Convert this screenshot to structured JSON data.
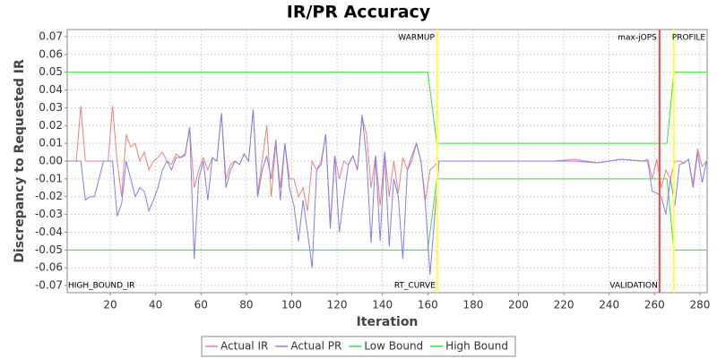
{
  "chart_data": {
    "type": "line",
    "title": "IR/PR Accuracy",
    "x_label": "Iteration",
    "y_label": "Discrepancy to Requested IR",
    "x": [
      1,
      3,
      5,
      7,
      9,
      11,
      13,
      15,
      17,
      19,
      21,
      23,
      25,
      27,
      29,
      31,
      33,
      35,
      37,
      39,
      41,
      43,
      45,
      47,
      49,
      51,
      53,
      55,
      57,
      59,
      61,
      63,
      65,
      67,
      69,
      71,
      73,
      75,
      77,
      79,
      81,
      83,
      85,
      87,
      89,
      91,
      93,
      95,
      97,
      99,
      101,
      103,
      105,
      107,
      109,
      111,
      113,
      115,
      117,
      119,
      121,
      123,
      125,
      127,
      129,
      131,
      133,
      135,
      137,
      139,
      141,
      143,
      145,
      147,
      149,
      151,
      153,
      155,
      157,
      159,
      161,
      165,
      175,
      185,
      195,
      205,
      215,
      225,
      235,
      245,
      255,
      257,
      259,
      261,
      263,
      265,
      267,
      269,
      271,
      273,
      275,
      277,
      279,
      281,
      283
    ],
    "series": [
      {
        "name": "Actual IR",
        "color": "#f28080",
        "values": [
          0,
          0,
          0,
          0.031,
          0,
          0,
          0,
          0,
          0,
          0,
          0.031,
          0,
          -0.02,
          0.015,
          0.008,
          0.01,
          0,
          0.005,
          -0.005,
          0,
          0.002,
          0.005,
          0,
          -0.002,
          0.004,
          0.002,
          0.003,
          0.019,
          -0.015,
          -0.005,
          0.002,
          -0.005,
          0.002,
          0,
          0.027,
          -0.01,
          -0.002,
          0,
          -0.002,
          0.004,
          0,
          0.029,
          -0.018,
          0,
          0.02,
          -0.02,
          0.01,
          -0.015,
          0.01,
          -0.01,
          -0.01,
          -0.02,
          -0.015,
          -0.028,
          0,
          -0.005,
          0,
          0.015,
          -0.035,
          0.003,
          -0.01,
          0,
          -0.002,
          0.003,
          -0.005,
          0.025,
          0.015,
          -0.015,
          0.003,
          -0.025,
          0.005,
          -0.02,
          0,
          -0.018,
          0.002,
          -0.005,
          0,
          0.01,
          0,
          -0.022,
          -0.005,
          0,
          0,
          0,
          0,
          0,
          0,
          0.001,
          -0.001,
          0.001,
          0,
          0.001,
          -0.01,
          0.001,
          -0.015,
          -0.005,
          -0.01,
          0,
          0,
          -0.001,
          0.001,
          -0.013,
          0.007,
          -0.003,
          0
        ]
      },
      {
        "name": "Actual PR",
        "color": "#7f7ff0",
        "values": [
          0,
          0,
          0,
          0,
          -0.022,
          -0.02,
          -0.02,
          -0.01,
          0,
          0,
          0,
          -0.031,
          -0.024,
          0,
          -0.01,
          -0.02,
          -0.015,
          -0.017,
          -0.028,
          -0.022,
          -0.015,
          -0.005,
          0,
          -0.005,
          0.002,
          0.002,
          0.004,
          0.019,
          -0.055,
          -0.01,
          0,
          -0.022,
          0.002,
          0,
          0.027,
          -0.015,
          -0.005,
          0,
          -0.002,
          0.004,
          0,
          0.029,
          -0.02,
          -0.005,
          0.003,
          -0.01,
          0.012,
          -0.022,
          0.01,
          -0.015,
          -0.025,
          -0.045,
          -0.022,
          -0.04,
          -0.06,
          -0.005,
          -0.002,
          0.015,
          -0.038,
          0.003,
          -0.04,
          -0.02,
          -0.002,
          0.003,
          -0.005,
          0.026,
          0.002,
          -0.046,
          0.003,
          -0.045,
          0.005,
          -0.048,
          -0.01,
          -0.02,
          -0.055,
          -0.005,
          0.003,
          0.01,
          0,
          -0.025,
          -0.064,
          0,
          0,
          0,
          0,
          0,
          0,
          0,
          -0.001,
          0.001,
          0,
          0,
          -0.017,
          -0.018,
          -0.02,
          -0.03,
          -0.01,
          -0.025,
          -0.002,
          -0.001,
          0.001,
          -0.015,
          0.005,
          -0.012,
          0
        ]
      },
      {
        "name": "Low Bound",
        "color": "#3ee03e",
        "x": [
          1,
          160,
          164,
          265.5,
          268.5,
          283
        ],
        "values": [
          -0.05,
          -0.05,
          -0.01,
          -0.01,
          -0.05,
          -0.05
        ]
      },
      {
        "name": "High Bound",
        "color": "#3ee03e",
        "x": [
          1,
          160,
          164,
          265.5,
          268.5,
          283
        ],
        "values": [
          0.05,
          0.05,
          0.01,
          0.01,
          0.05,
          0.05
        ]
      }
    ],
    "markers": [
      {
        "x": 164.2,
        "color": "#ffff40",
        "label": "WARMUP",
        "bottom_label": "RT_CURVE"
      },
      {
        "x": 262.2,
        "color": "#ff4040",
        "label": "max-jOPS",
        "bottom_label": "VALIDATION"
      },
      {
        "x": 268.5,
        "color": "#ffff40",
        "label": "PROFILE"
      }
    ],
    "corner_label": "HIGH_BOUND_IR",
    "xlim": [
      1,
      283.2
    ],
    "ylim": [
      -0.074,
      0.074
    ],
    "xticks": [
      20,
      40,
      60,
      80,
      100,
      120,
      140,
      160,
      180,
      200,
      220,
      240,
      260,
      280
    ],
    "yticks": [
      0.07,
      0.06,
      0.05,
      0.04,
      0.03,
      0.02,
      0.01,
      {
        "value": 0,
        "label": "0.00"
      },
      -0.01,
      -0.02,
      -0.03,
      -0.04,
      -0.05,
      -0.06,
      -0.07
    ],
    "grid": true,
    "legend": "bottom"
  }
}
